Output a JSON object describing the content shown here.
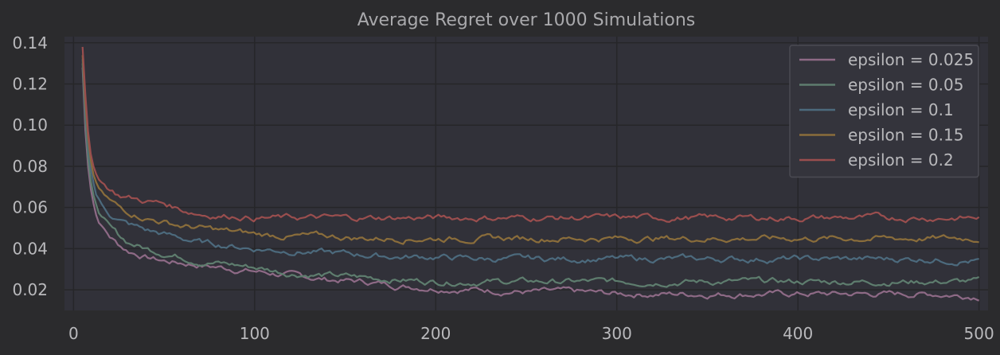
{
  "chart_data": {
    "type": "line",
    "title": "Average Regret over 1000 Simulations",
    "xlabel": "",
    "ylabel": "",
    "xlim": [
      -5,
      505
    ],
    "ylim": [
      0.01,
      0.143
    ],
    "xticks": [
      0,
      100,
      200,
      300,
      400,
      500
    ],
    "xtick_labels": [
      "0",
      "100",
      "200",
      "300",
      "400",
      "500"
    ],
    "yticks": [
      0.02,
      0.04,
      0.06,
      0.08,
      0.1,
      0.12,
      0.14
    ],
    "ytick_labels": [
      "0.02",
      "0.04",
      "0.06",
      "0.08",
      "0.10",
      "0.12",
      "0.14"
    ],
    "grid": true,
    "legend_position": "top-right",
    "x": [
      5,
      6,
      7,
      8,
      9,
      10,
      12,
      15,
      20,
      25,
      30,
      40,
      50,
      60,
      70,
      80,
      90,
      100,
      120,
      140,
      160,
      180,
      200,
      225,
      250,
      275,
      300,
      325,
      350,
      375,
      400,
      425,
      450,
      475,
      500
    ],
    "series": [
      {
        "name": "epsilon = 0.025",
        "color": "#8e6a86",
        "values": [
          0.128,
          0.105,
          0.09,
          0.08,
          0.072,
          0.066,
          0.058,
          0.052,
          0.046,
          0.042,
          0.039,
          0.036,
          0.034,
          0.033,
          0.032,
          0.031,
          0.03,
          0.029,
          0.027,
          0.025,
          0.024,
          0.022,
          0.021,
          0.02,
          0.019,
          0.019,
          0.018,
          0.018,
          0.018,
          0.018,
          0.018,
          0.018,
          0.018,
          0.018,
          0.017
        ]
      },
      {
        "name": "epsilon = 0.05",
        "color": "#5e7d6e",
        "values": [
          0.13,
          0.11,
          0.095,
          0.084,
          0.076,
          0.07,
          0.062,
          0.056,
          0.05,
          0.046,
          0.043,
          0.04,
          0.038,
          0.036,
          0.034,
          0.033,
          0.032,
          0.031,
          0.028,
          0.027,
          0.026,
          0.025,
          0.024,
          0.024,
          0.024,
          0.024,
          0.024,
          0.024,
          0.024,
          0.024,
          0.024,
          0.024,
          0.024,
          0.024,
          0.024
        ]
      },
      {
        "name": "epsilon = 0.1",
        "color": "#4c6a7d",
        "values": [
          0.132,
          0.115,
          0.1,
          0.09,
          0.082,
          0.076,
          0.068,
          0.062,
          0.057,
          0.054,
          0.052,
          0.049,
          0.047,
          0.045,
          0.043,
          0.042,
          0.041,
          0.04,
          0.039,
          0.038,
          0.037,
          0.036,
          0.036,
          0.035,
          0.035,
          0.035,
          0.035,
          0.035,
          0.035,
          0.035,
          0.035,
          0.035,
          0.035,
          0.035,
          0.034
        ]
      },
      {
        "name": "epsilon = 0.15",
        "color": "#8a6d3b",
        "values": [
          0.134,
          0.118,
          0.104,
          0.094,
          0.086,
          0.08,
          0.072,
          0.067,
          0.063,
          0.06,
          0.058,
          0.055,
          0.053,
          0.051,
          0.05,
          0.049,
          0.048,
          0.047,
          0.046,
          0.046,
          0.045,
          0.045,
          0.045,
          0.045,
          0.045,
          0.045,
          0.045,
          0.045,
          0.045,
          0.045,
          0.045,
          0.045,
          0.045,
          0.045,
          0.045
        ]
      },
      {
        "name": "epsilon = 0.2",
        "color": "#9a4e4e",
        "values": [
          0.138,
          0.122,
          0.108,
          0.097,
          0.089,
          0.083,
          0.077,
          0.073,
          0.069,
          0.066,
          0.065,
          0.063,
          0.062,
          0.059,
          0.057,
          0.056,
          0.056,
          0.055,
          0.055,
          0.055,
          0.055,
          0.055,
          0.055,
          0.055,
          0.055,
          0.055,
          0.055,
          0.055,
          0.055,
          0.055,
          0.055,
          0.055,
          0.055,
          0.055,
          0.055
        ]
      }
    ]
  }
}
